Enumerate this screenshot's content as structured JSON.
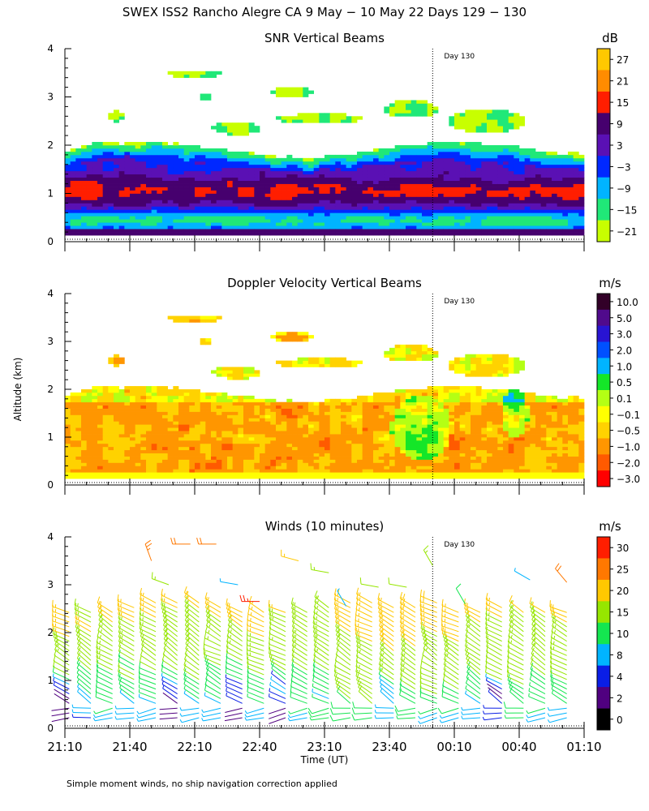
{
  "figure": {
    "title": "SWEX ISS2 Rancho Alegre CA    9 May − 10 May 22 Days 129 − 130",
    "ylabel": "Altitude (km)",
    "xlabel": "Time (UT)",
    "footnote": "Simple moment winds, no ship navigation correction applied",
    "day_marker_label": "Day 130"
  },
  "chart_data": [
    {
      "type": "heatmap",
      "title": "SNR Vertical Beams",
      "unit": "dB",
      "xlim": [
        0,
        240
      ],
      "ylim": [
        0,
        4
      ],
      "x_tick_minutes": [
        0,
        30,
        60,
        90,
        120,
        150,
        180,
        210,
        240
      ],
      "y_ticks": [
        0,
        1,
        2,
        3,
        4
      ],
      "day_marker_minutes": 170,
      "colorbar_labels": [
        "27",
        "21",
        "15",
        "9",
        "3",
        "−3",
        "−9",
        "−15",
        "−21"
      ],
      "colorbar_colors": [
        "#ffc800",
        "#ff8c00",
        "#ff1e00",
        "#46006e",
        "#5a10b4",
        "#0028ff",
        "#00b4ff",
        "#20e878",
        "#c8ff00"
      ]
    },
    {
      "type": "heatmap",
      "title": "Doppler Velocity Vertical Beams",
      "unit": "m/s",
      "xlim": [
        0,
        240
      ],
      "ylim": [
        0,
        4
      ],
      "x_tick_minutes": [
        0,
        30,
        60,
        90,
        120,
        150,
        180,
        210,
        240
      ],
      "y_ticks": [
        0,
        1,
        2,
        3,
        4
      ],
      "day_marker_minutes": 170,
      "colorbar_labels": [
        "10.0",
        "5.0",
        "3.0",
        "2.0",
        "1.0",
        "0.5",
        "0.1",
        "−0.1",
        "−0.5",
        "−1.0",
        "−2.0",
        "−3.0"
      ],
      "colorbar_colors": [
        "#320028",
        "#500a8c",
        "#2814d2",
        "#0050ff",
        "#00b4ff",
        "#14e628",
        "#b4ff14",
        "#ffff00",
        "#ffd200",
        "#ff9600",
        "#ff5a00",
        "#ff0000"
      ]
    },
    {
      "type": "barbs",
      "title": "Winds (10 minutes)",
      "unit": "m/s",
      "xlim": [
        0,
        240
      ],
      "ylim": [
        0,
        4
      ],
      "x_tick_minutes": [
        0,
        30,
        60,
        90,
        120,
        150,
        180,
        210,
        240
      ],
      "x_tick_labels": [
        "21:10",
        "21:40",
        "22:10",
        "22:40",
        "23:10",
        "23:40",
        "00:10",
        "00:40",
        "01:10"
      ],
      "y_ticks": [
        0,
        1,
        2,
        3,
        4
      ],
      "day_marker_minutes": 170,
      "colorbar_labels": [
        "30",
        "25",
        "20",
        "15",
        "10",
        "8",
        "4",
        "2",
        "0"
      ],
      "colorbar_colors": [
        "#ff1e00",
        "#ff7800",
        "#ffc800",
        "#96e600",
        "#14e650",
        "#00b4ff",
        "#0a1ee6",
        "#500080",
        "#000000"
      ]
    }
  ]
}
